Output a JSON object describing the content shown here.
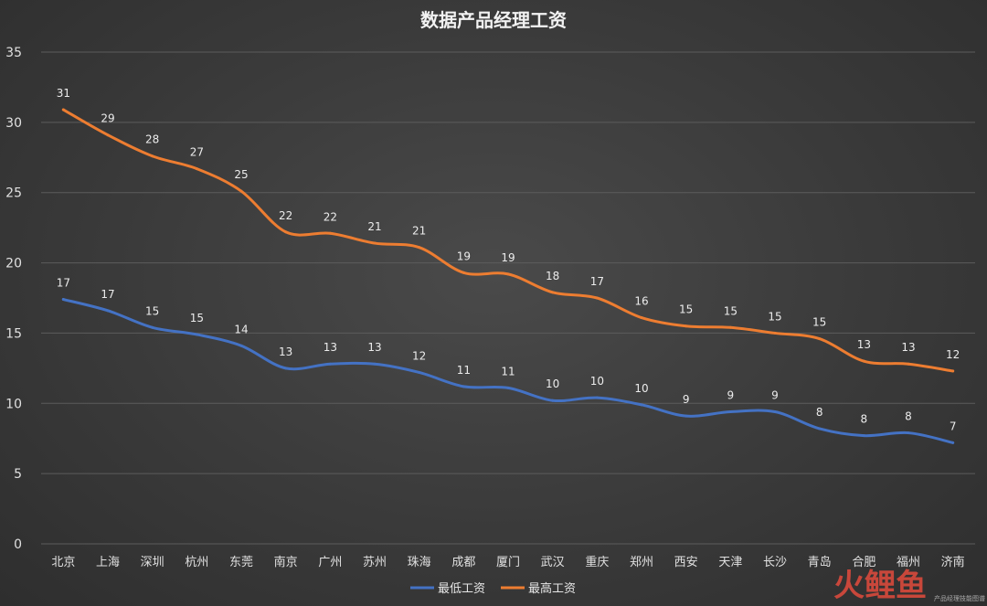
{
  "chart_data": {
    "type": "line",
    "title": "数据产品经理工资",
    "xlabel": "",
    "ylabel": "",
    "ylim": [
      0,
      35
    ],
    "yticks": [
      0,
      5,
      10,
      15,
      20,
      25,
      30,
      35
    ],
    "grid": true,
    "legend_position": "bottom",
    "categories": [
      "北京",
      "上海",
      "深圳",
      "杭州",
      "东莞",
      "南京",
      "广州",
      "苏州",
      "珠海",
      "成都",
      "厦门",
      "武汉",
      "重庆",
      "郑州",
      "西安",
      "天津",
      "长沙",
      "青岛",
      "合肥",
      "福州",
      "济南"
    ],
    "series": [
      {
        "name": "最低工资",
        "color": "#4472c4",
        "values": [
          17.4,
          16.6,
          15.4,
          14.9,
          14.1,
          12.5,
          12.8,
          12.8,
          12.2,
          11.2,
          11.1,
          10.2,
          10.4,
          9.9,
          9.1,
          9.4,
          9.4,
          8.2,
          7.7,
          7.9,
          7.2
        ],
        "labels": [
          "17",
          "17",
          "15",
          "15",
          "14",
          "13",
          "13",
          "13",
          "12",
          "11",
          "11",
          "10",
          "10",
          "10",
          "9",
          "9",
          "9",
          "8",
          "8",
          "8",
          "7"
        ]
      },
      {
        "name": "最高工资",
        "color": "#ed7d31",
        "values": [
          30.9,
          29.1,
          27.6,
          26.7,
          25.1,
          22.2,
          22.1,
          21.4,
          21.1,
          19.3,
          19.2,
          17.9,
          17.5,
          16.1,
          15.5,
          15.4,
          15.0,
          14.6,
          13.0,
          12.8,
          12.3
        ],
        "labels": [
          "31",
          "29",
          "28",
          "27",
          "25",
          "22",
          "22",
          "21",
          "21",
          "19",
          "19",
          "18",
          "17",
          "16",
          "15",
          "15",
          "15",
          "15",
          "13",
          "13",
          "12"
        ]
      }
    ]
  },
  "watermark": {
    "text": "火鲤鱼",
    "subtext": "产品经理技能图谱",
    "color": "#d94a3c"
  }
}
